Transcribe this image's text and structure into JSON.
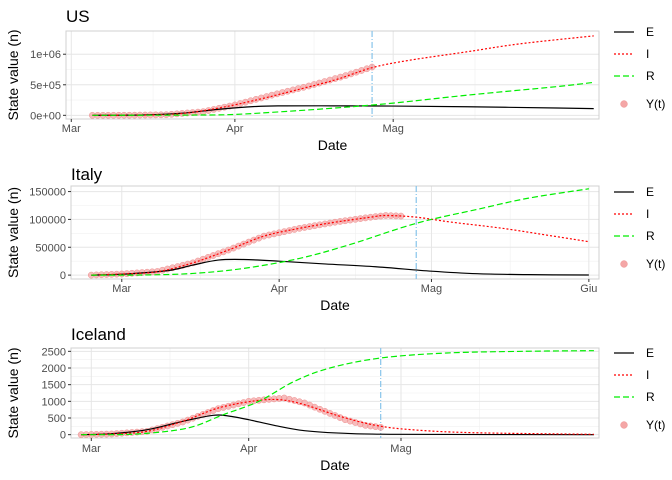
{
  "chart_data": [
    {
      "type": "line",
      "title": "US",
      "xlabel": "Date",
      "ylabel": "State value (n)",
      "x_ticks": [
        "Mar",
        "Apr",
        "Mag"
      ],
      "x_tick_dates": [
        "2020-03-01",
        "2020-04-01",
        "2020-05-01"
      ],
      "xlim": [
        "2020-02-29",
        "2020-06-09"
      ],
      "y_ticks": [
        "0e+00",
        "5e+05",
        "1e+06"
      ],
      "y_tick_values": [
        0,
        500000,
        1000000
      ],
      "ylim": [
        -60000,
        1380000
      ],
      "cutoff_date": "2020-04-27",
      "series": [
        {
          "name": "E",
          "color": "#000000",
          "dash": "solid",
          "points": [
            [
              "2020-03-05",
              0
            ],
            [
              "2020-03-15",
              8000
            ],
            [
              "2020-03-22",
              35000
            ],
            [
              "2020-03-29",
              100000
            ],
            [
              "2020-04-05",
              145000
            ],
            [
              "2020-04-10",
              155000
            ],
            [
              "2020-04-20",
              155000
            ],
            [
              "2020-05-01",
              152000
            ],
            [
              "2020-05-15",
              140000
            ],
            [
              "2020-06-01",
              120000
            ],
            [
              "2020-06-08",
              110000
            ]
          ]
        },
        {
          "name": "I",
          "color": "#ff0000",
          "dash": "dotted",
          "points": [
            [
              "2020-03-05",
              0
            ],
            [
              "2020-03-15",
              5000
            ],
            [
              "2020-03-22",
              30000
            ],
            [
              "2020-03-29",
              120000
            ],
            [
              "2020-04-05",
              250000
            ],
            [
              "2020-04-12",
              400000
            ],
            [
              "2020-04-20",
              580000
            ],
            [
              "2020-04-27",
              780000
            ],
            [
              "2020-05-04",
              900000
            ],
            [
              "2020-05-15",
              1040000
            ],
            [
              "2020-05-25",
              1170000
            ],
            [
              "2020-06-08",
              1300000
            ]
          ]
        },
        {
          "name": "R",
          "color": "#00ee00",
          "dash": "dashed",
          "points": [
            [
              "2020-03-05",
              0
            ],
            [
              "2020-03-25",
              5000
            ],
            [
              "2020-04-01",
              15000
            ],
            [
              "2020-04-10",
              60000
            ],
            [
              "2020-04-20",
              120000
            ],
            [
              "2020-05-01",
              200000
            ],
            [
              "2020-05-15",
              330000
            ],
            [
              "2020-06-01",
              470000
            ],
            [
              "2020-06-08",
              540000
            ]
          ]
        }
      ],
      "observed": {
        "name": "Y(t)",
        "color": "#f4a6a6",
        "range": [
          "2020-03-05",
          "2020-04-27"
        ],
        "points": [
          [
            "2020-03-05",
            0
          ],
          [
            "2020-03-12",
            1500
          ],
          [
            "2020-03-19",
            10000
          ],
          [
            "2020-03-26",
            60000
          ],
          [
            "2020-04-01",
            170000
          ],
          [
            "2020-04-08",
            330000
          ],
          [
            "2020-04-15",
            480000
          ],
          [
            "2020-04-22",
            650000
          ],
          [
            "2020-04-27",
            790000
          ]
        ]
      }
    },
    {
      "type": "line",
      "title": "Italy",
      "xlabel": "Date",
      "ylabel": "State value (n)",
      "x_ticks": [
        "Mar",
        "Apr",
        "Mag",
        "Giu"
      ],
      "x_tick_dates": [
        "2020-03-01",
        "2020-04-01",
        "2020-05-01",
        "2020-06-01"
      ],
      "xlim": [
        "2020-02-20",
        "2020-06-03"
      ],
      "y_ticks": [
        "0",
        "50000",
        "100000",
        "150000"
      ],
      "y_tick_values": [
        0,
        50000,
        100000,
        150000
      ],
      "ylim": [
        -7000,
        160000
      ],
      "cutoff_date": "2020-04-28",
      "series": [
        {
          "name": "E",
          "color": "#000000",
          "dash": "solid",
          "points": [
            [
              "2020-02-24",
              0
            ],
            [
              "2020-03-01",
              1500
            ],
            [
              "2020-03-10",
              8000
            ],
            [
              "2020-03-15",
              18000
            ],
            [
              "2020-03-20",
              27000
            ],
            [
              "2020-03-25",
              28000
            ],
            [
              "2020-04-01",
              25000
            ],
            [
              "2020-04-10",
              20000
            ],
            [
              "2020-04-20",
              15000
            ],
            [
              "2020-05-01",
              7000
            ],
            [
              "2020-05-10",
              2500
            ],
            [
              "2020-05-20",
              800
            ],
            [
              "2020-06-01",
              200
            ]
          ]
        },
        {
          "name": "I",
          "color": "#ff0000",
          "dash": "dotted",
          "points": [
            [
              "2020-02-24",
              0
            ],
            [
              "2020-03-01",
              2000
            ],
            [
              "2020-03-08",
              6000
            ],
            [
              "2020-03-15",
              22000
            ],
            [
              "2020-03-22",
              45000
            ],
            [
              "2020-03-29",
              70000
            ],
            [
              "2020-04-05",
              84000
            ],
            [
              "2020-04-12",
              95000
            ],
            [
              "2020-04-19",
              104000
            ],
            [
              "2020-04-22",
              107000
            ],
            [
              "2020-04-28",
              104000
            ],
            [
              "2020-05-05",
              95000
            ],
            [
              "2020-05-15",
              84000
            ],
            [
              "2020-05-25",
              70000
            ],
            [
              "2020-06-01",
              60000
            ]
          ]
        },
        {
          "name": "R",
          "color": "#00ee00",
          "dash": "dashed",
          "points": [
            [
              "2020-02-24",
              0
            ],
            [
              "2020-03-05",
              200
            ],
            [
              "2020-03-15",
              3000
            ],
            [
              "2020-03-25",
              12000
            ],
            [
              "2020-04-05",
              30000
            ],
            [
              "2020-04-15",
              55000
            ],
            [
              "2020-04-28",
              93000
            ],
            [
              "2020-05-10",
              118000
            ],
            [
              "2020-05-20",
              138000
            ],
            [
              "2020-06-01",
              155000
            ]
          ]
        }
      ],
      "observed": {
        "name": "Y(t)",
        "color": "#f4a6a6",
        "range": [
          "2020-02-24",
          "2020-04-25"
        ],
        "points": [
          [
            "2020-02-24",
            0
          ],
          [
            "2020-03-01",
            2000
          ],
          [
            "2020-03-08",
            6500
          ],
          [
            "2020-03-15",
            22000
          ],
          [
            "2020-03-22",
            45000
          ],
          [
            "2020-03-29",
            70000
          ],
          [
            "2020-04-05",
            84000
          ],
          [
            "2020-04-12",
            95000
          ],
          [
            "2020-04-19",
            104000
          ],
          [
            "2020-04-22",
            107000
          ],
          [
            "2020-04-25",
            106000
          ]
        ]
      }
    },
    {
      "type": "line",
      "title": "Iceland",
      "xlabel": "Date",
      "ylabel": "State value (n)",
      "x_ticks": [
        "Mar",
        "Apr",
        "Mag"
      ],
      "x_tick_dates": [
        "2020-03-01",
        "2020-04-01",
        "2020-05-01"
      ],
      "xlim": [
        "2020-02-26",
        "2020-06-09"
      ],
      "y_ticks": [
        "0",
        "500",
        "1000",
        "1500",
        "2000",
        "2500"
      ],
      "y_tick_values": [
        0,
        500,
        1000,
        1500,
        2000,
        2500
      ],
      "ylim": [
        -100,
        2600
      ],
      "cutoff_date": "2020-04-27",
      "series": [
        {
          "name": "E",
          "color": "#000000",
          "dash": "solid",
          "points": [
            [
              "2020-02-28",
              0
            ],
            [
              "2020-03-05",
              30
            ],
            [
              "2020-03-12",
              150
            ],
            [
              "2020-03-19",
              400
            ],
            [
              "2020-03-25",
              580
            ],
            [
              "2020-03-28",
              560
            ],
            [
              "2020-04-01",
              450
            ],
            [
              "2020-04-06",
              280
            ],
            [
              "2020-04-12",
              120
            ],
            [
              "2020-04-20",
              40
            ],
            [
              "2020-05-01",
              10
            ],
            [
              "2020-06-08",
              0
            ]
          ]
        },
        {
          "name": "I",
          "color": "#ff0000",
          "dash": "dotted",
          "points": [
            [
              "2020-02-28",
              0
            ],
            [
              "2020-03-05",
              20
            ],
            [
              "2020-03-12",
              100
            ],
            [
              "2020-03-19",
              400
            ],
            [
              "2020-03-26",
              800
            ],
            [
              "2020-04-02",
              1010
            ],
            [
              "2020-04-07",
              1050
            ],
            [
              "2020-04-12",
              900
            ],
            [
              "2020-04-19",
              550
            ],
            [
              "2020-04-26",
              280
            ],
            [
              "2020-05-03",
              150
            ],
            [
              "2020-05-15",
              60
            ],
            [
              "2020-06-08",
              10
            ]
          ]
        },
        {
          "name": "R",
          "color": "#00ee00",
          "dash": "dashed",
          "points": [
            [
              "2020-02-28",
              0
            ],
            [
              "2020-03-10",
              20
            ],
            [
              "2020-03-20",
              200
            ],
            [
              "2020-03-27",
              600
            ],
            [
              "2020-04-03",
              1000
            ],
            [
              "2020-04-10",
              1600
            ],
            [
              "2020-04-17",
              2000
            ],
            [
              "2020-04-27",
              2300
            ],
            [
              "2020-05-10",
              2450
            ],
            [
              "2020-05-25",
              2500
            ],
            [
              "2020-06-08",
              2520
            ]
          ]
        }
      ],
      "observed": {
        "name": "Y(t)",
        "color": "#f4a6a6",
        "range": [
          "2020-02-28",
          "2020-04-27"
        ],
        "points": [
          [
            "2020-02-28",
            0
          ],
          [
            "2020-03-05",
            20
          ],
          [
            "2020-03-12",
            100
          ],
          [
            "2020-03-19",
            380
          ],
          [
            "2020-03-26",
            780
          ],
          [
            "2020-04-01",
            1000
          ],
          [
            "2020-04-05",
            1060
          ],
          [
            "2020-04-08",
            1100
          ],
          [
            "2020-04-12",
            950
          ],
          [
            "2020-04-16",
            700
          ],
          [
            "2020-04-20",
            450
          ],
          [
            "2020-04-24",
            280
          ],
          [
            "2020-04-27",
            220
          ]
        ]
      }
    }
  ]
}
